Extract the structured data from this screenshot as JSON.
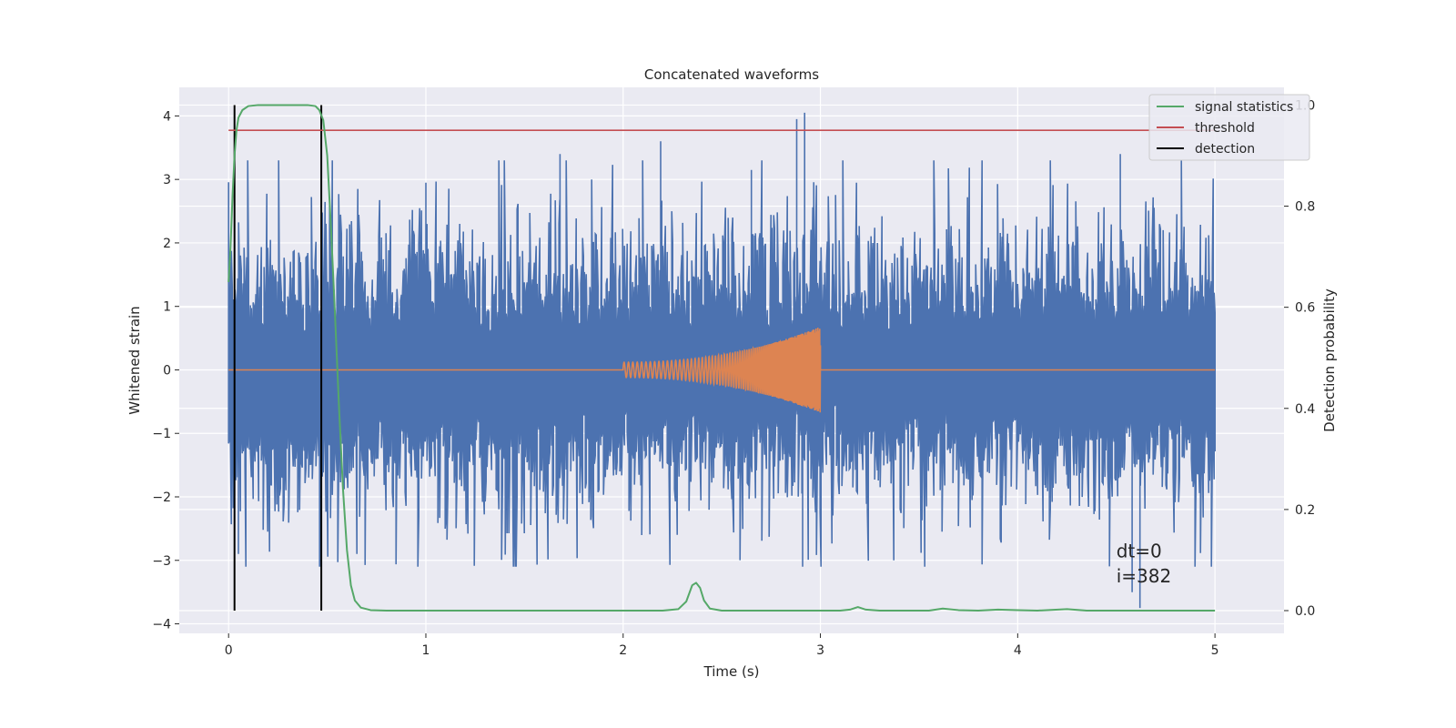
{
  "chart_data": {
    "type": "line",
    "title": "Concatenated waveforms",
    "xlabel": "Time (s)",
    "ylabel": "Whitened strain",
    "y2label": "Detection probability",
    "xlim": [
      -0.25,
      5.35
    ],
    "ylim": [
      -4.15,
      4.45
    ],
    "y2lim": [
      -0.045,
      1.035
    ],
    "xticks": [
      "0",
      "1",
      "2",
      "3",
      "4",
      "5"
    ],
    "xtick_values": [
      0,
      1,
      2,
      3,
      4,
      5
    ],
    "yticks": [
      "−4",
      "−3",
      "−2",
      "−1",
      "0",
      "1",
      "2",
      "3",
      "4"
    ],
    "ytick_values": [
      -4,
      -3,
      -2,
      -1,
      0,
      1,
      2,
      3,
      4
    ],
    "y2ticks": [
      "0.0",
      "0.2",
      "0.4",
      "0.6",
      "0.8",
      "1.0"
    ],
    "y2tick_values": [
      0.0,
      0.2,
      0.4,
      0.6,
      0.8,
      1.0
    ],
    "grid": true,
    "legend_position": "top-right",
    "series": [
      {
        "name": "",
        "axis": "left",
        "color": "#4c72b0",
        "kind": "whitened-noise",
        "x_range": [
          0,
          5
        ],
        "typical_amplitude": 1.5,
        "peaks": [
          {
            "x": 1.0,
            "y": 2.95
          },
          {
            "x": 1.68,
            "y": 3.4
          },
          {
            "x": 2.19,
            "y": 3.6
          },
          {
            "x": 2.65,
            "y": 3.15
          },
          {
            "x": 2.88,
            "y": 3.95
          },
          {
            "x": 2.92,
            "y": 4.05
          },
          {
            "x": 2.91,
            "y": -3.1
          },
          {
            "x": 4.52,
            "y": 3.4
          },
          {
            "x": 4.62,
            "y": -3.75
          },
          {
            "x": 4.58,
            "y": -3.5
          },
          {
            "x": 0.05,
            "y": -2.9
          }
        ]
      },
      {
        "name": "",
        "axis": "left",
        "color": "#dd8452",
        "kind": "chirp",
        "x_range": [
          0,
          5
        ],
        "chirp_start": 2.0,
        "chirp_end": 3.0,
        "amplitude_start": 0.12,
        "amplitude_end": 0.68
      },
      {
        "name": "signal statistics",
        "axis": "right",
        "color": "#55a868",
        "points": [
          [
            0.0,
            0.65
          ],
          [
            0.01,
            0.72
          ],
          [
            0.02,
            0.82
          ],
          [
            0.03,
            0.9
          ],
          [
            0.04,
            0.95
          ],
          [
            0.05,
            0.975
          ],
          [
            0.07,
            0.99
          ],
          [
            0.1,
            0.998
          ],
          [
            0.15,
            1.0
          ],
          [
            0.3,
            1.0
          ],
          [
            0.4,
            1.0
          ],
          [
            0.44,
            0.998
          ],
          [
            0.46,
            0.99
          ],
          [
            0.48,
            0.97
          ],
          [
            0.5,
            0.9
          ],
          [
            0.52,
            0.75
          ],
          [
            0.54,
            0.58
          ],
          [
            0.56,
            0.4
          ],
          [
            0.58,
            0.24
          ],
          [
            0.6,
            0.12
          ],
          [
            0.62,
            0.05
          ],
          [
            0.64,
            0.02
          ],
          [
            0.67,
            0.006
          ],
          [
            0.72,
            0.001
          ],
          [
            0.8,
            0.0
          ],
          [
            1.5,
            0.0
          ],
          [
            2.2,
            0.0
          ],
          [
            2.28,
            0.003
          ],
          [
            2.32,
            0.018
          ],
          [
            2.35,
            0.05
          ],
          [
            2.37,
            0.055
          ],
          [
            2.39,
            0.045
          ],
          [
            2.41,
            0.02
          ],
          [
            2.44,
            0.004
          ],
          [
            2.5,
            0.0
          ],
          [
            3.1,
            0.0
          ],
          [
            3.15,
            0.002
          ],
          [
            3.19,
            0.007
          ],
          [
            3.23,
            0.002
          ],
          [
            3.3,
            0.0
          ],
          [
            3.55,
            0.0
          ],
          [
            3.62,
            0.004
          ],
          [
            3.7,
            0.001
          ],
          [
            3.8,
            0.0
          ],
          [
            3.9,
            0.002
          ],
          [
            4.0,
            0.001
          ],
          [
            4.1,
            0.0
          ],
          [
            4.25,
            0.003
          ],
          [
            4.35,
            0.0
          ],
          [
            4.6,
            0.0
          ],
          [
            5.0,
            0.0
          ]
        ]
      },
      {
        "name": "threshold",
        "axis": "right",
        "color": "#c44e52",
        "value": 0.95,
        "x_range": [
          0,
          5
        ]
      },
      {
        "name": "detection",
        "axis": "right",
        "color": "#000000",
        "x_values": [
          0.03,
          0.47
        ],
        "y_range": [
          0.0,
          1.0
        ]
      }
    ],
    "annotations": [
      {
        "text": "dt=0",
        "x": 4.5,
        "y": -2.95
      },
      {
        "text": "i=382",
        "x": 4.5,
        "y": -3.35
      }
    ]
  }
}
